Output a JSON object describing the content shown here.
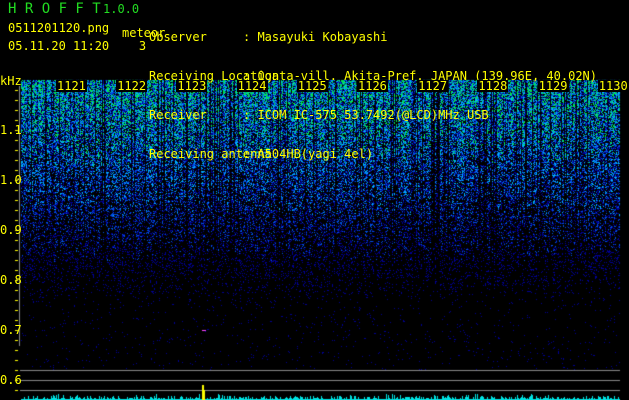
{
  "header": {
    "app_name": "H R O F F T",
    "version": "1.0.0",
    "filename": "0511201120.png",
    "datetime": "05.11.20 11:20",
    "meteor_label": "meteor",
    "meteor_count": "3",
    "info": [
      {
        "label": "Observer",
        "value": ": Masayuki Kobayashi"
      },
      {
        "label": "Receiving Location",
        "value": ": Ogata-vill. Akita-Pref. JAPAN (139.96E, 40.02N)"
      },
      {
        "label": "Receiver",
        "value": ": ICOM IC-575 53.7492(@LCD)MHz USB"
      },
      {
        "label": "Receiving antenna",
        "value": ": A504HB(yagi 4el)"
      }
    ]
  },
  "chart_data": {
    "type": "heatmap",
    "ylabel": "kHz",
    "yticks": [
      "1.1",
      "1.0",
      "0.9",
      "0.8",
      "0.7",
      "0.6"
    ],
    "ylim": [
      0.56,
      1.2
    ],
    "xticks": [
      "1121",
      "1122",
      "1123",
      "1124",
      "1125",
      "1126",
      "1127",
      "1128",
      "1129",
      "1130"
    ],
    "colors": {
      "background": "#000000",
      "low": "#0000aa",
      "mid": "#00aaff",
      "high": "#00ff44",
      "text": "#ffff00",
      "histogram": "#00e5e5"
    }
  }
}
